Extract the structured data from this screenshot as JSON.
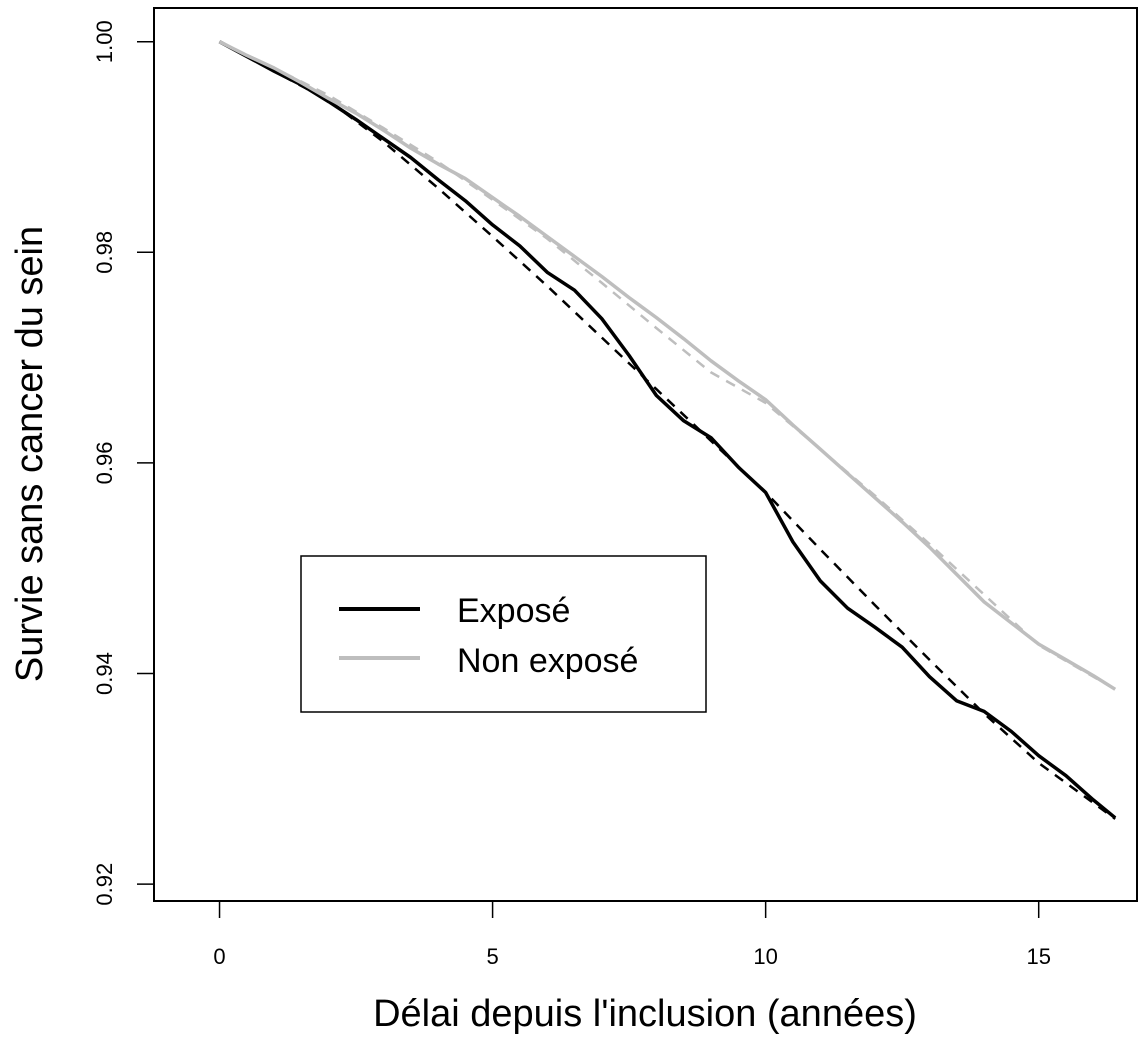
{
  "chart_data": {
    "type": "line",
    "title": "",
    "xlabel": "Délai depuis l'inclusion (années)",
    "ylabel": "Survie sans cancer du sein",
    "xlim": [
      -1.2,
      16.8
    ],
    "ylim": [
      0.9184,
      1.0032
    ],
    "x_ticks": [
      0,
      5,
      10,
      15
    ],
    "y_ticks": [
      0.92,
      0.94,
      0.96,
      0.98,
      1.0
    ],
    "x_tick_labels": [
      "0",
      "5",
      "10",
      "15"
    ],
    "y_tick_labels": [
      "0.92",
      "0.94",
      "0.96",
      "0.98",
      "1.00"
    ],
    "grid": false,
    "legend_position": "center-left",
    "series": [
      {
        "name": "Exposé",
        "color": "#000000",
        "style": "solid",
        "x": [
          0,
          0.5,
          1,
          1.5,
          2,
          2.5,
          3,
          3.5,
          4,
          4.5,
          5,
          5.5,
          6,
          6.5,
          7,
          7.5,
          8,
          8.5,
          9,
          9.5,
          10,
          10.5,
          11,
          11.5,
          12,
          12.5,
          13,
          13.5,
          14,
          14.5,
          15,
          15.5,
          16,
          16.4
        ],
        "values": [
          1.0,
          0.9986,
          0.9972,
          0.9959,
          0.9943,
          0.9926,
          0.9908,
          0.989,
          0.9869,
          0.9849,
          0.9826,
          0.9806,
          0.9781,
          0.9764,
          0.9737,
          0.9702,
          0.9664,
          0.964,
          0.9624,
          0.9596,
          0.9572,
          0.9525,
          0.9488,
          0.9462,
          0.9444,
          0.9425,
          0.9397,
          0.9374,
          0.9364,
          0.9345,
          0.9322,
          0.9303,
          0.928,
          0.9263
        ]
      },
      {
        "name": "Non exposé",
        "color": "#bebebe",
        "style": "solid",
        "x": [
          0,
          0.5,
          1,
          1.5,
          2,
          2.5,
          3,
          3.5,
          4,
          4.5,
          5,
          5.5,
          6,
          6.5,
          7,
          7.5,
          8,
          8.5,
          9,
          9.5,
          10,
          10.5,
          11,
          11.5,
          12,
          12.5,
          13,
          13.5,
          14,
          14.5,
          15,
          15.5,
          16,
          16.4
        ],
        "values": [
          1.0,
          0.9987,
          0.9975,
          0.9961,
          0.9946,
          0.9932,
          0.9916,
          0.9899,
          0.9884,
          0.987,
          0.9852,
          0.9834,
          0.9815,
          0.9796,
          0.9777,
          0.9757,
          0.9738,
          0.9718,
          0.9697,
          0.9678,
          0.966,
          0.9636,
          0.9613,
          0.959,
          0.9567,
          0.9544,
          0.952,
          0.9494,
          0.9468,
          0.9448,
          0.9428,
          0.9413,
          0.9398,
          0.9385
        ]
      },
      {
        "color": "#000000",
        "style": "dashed",
        "x": [
          0,
          1,
          2,
          3,
          4,
          5,
          6,
          7,
          8,
          9,
          10,
          11,
          12,
          13,
          14,
          15,
          16.4
        ],
        "values": [
          1.0,
          0.9972,
          0.9944,
          0.9905,
          0.9861,
          0.9815,
          0.9768,
          0.9719,
          0.967,
          0.9621,
          0.9572,
          0.9518,
          0.9465,
          0.9413,
          0.9362,
          0.9315,
          0.9262
        ]
      },
      {
        "color": "#bebebe",
        "style": "dashed",
        "x": [
          0,
          1,
          2,
          3,
          4,
          5,
          6,
          7,
          8,
          9,
          10,
          11,
          12,
          13,
          14,
          15,
          16.4
        ],
        "values": [
          1.0,
          0.9975,
          0.9949,
          0.9918,
          0.9886,
          0.985,
          0.9813,
          0.9771,
          0.9728,
          0.9686,
          0.9657,
          0.9613,
          0.9569,
          0.9523,
          0.9475,
          0.9427,
          0.9385
        ]
      }
    ],
    "legend": {
      "entries": [
        {
          "label": "Exposé",
          "color": "#000000"
        },
        {
          "label": "Non exposé",
          "color": "#bebebe"
        }
      ]
    }
  }
}
